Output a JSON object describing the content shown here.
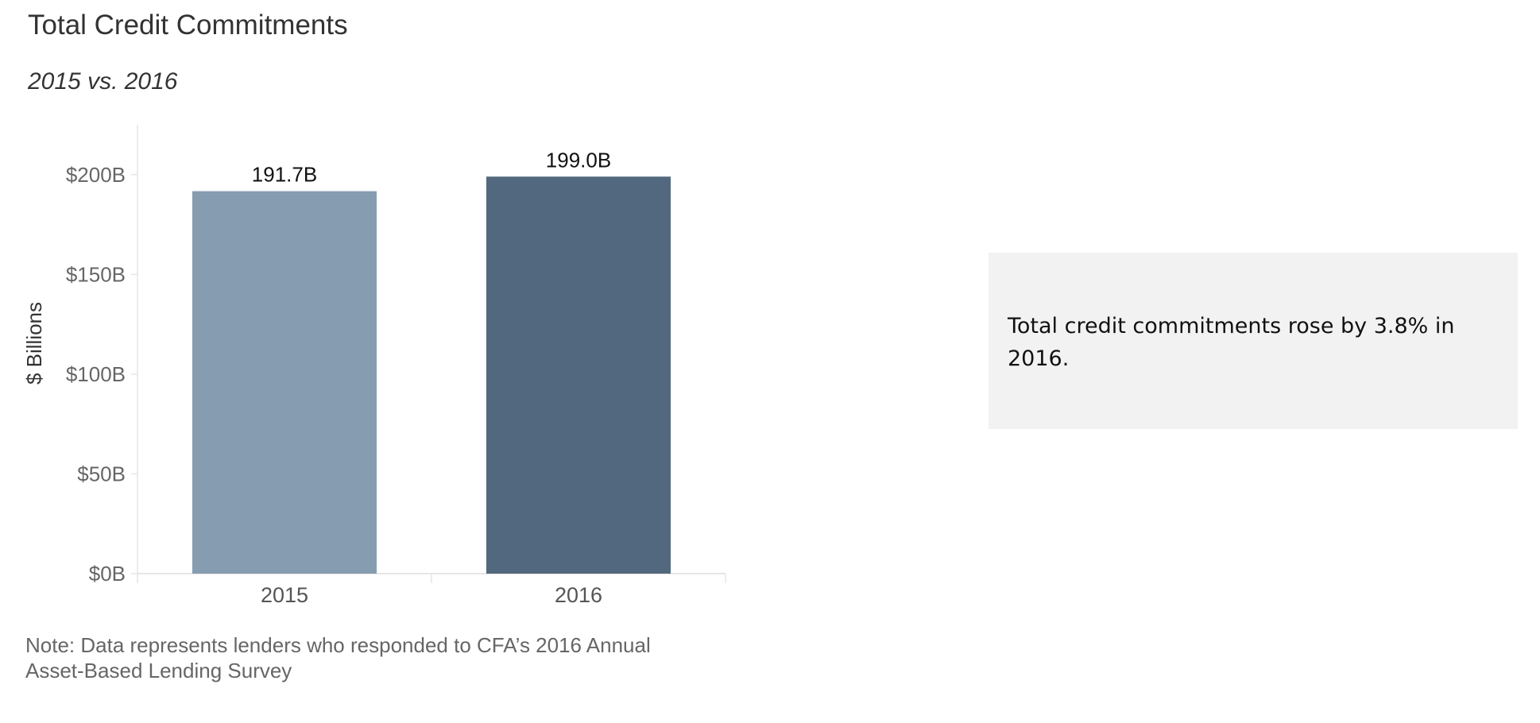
{
  "chart_data": {
    "type": "bar",
    "title": "Total Credit Commitments",
    "subtitle": "2015 vs. 2016",
    "categories": [
      "2015",
      "2016"
    ],
    "values": [
      191.7,
      199.0
    ],
    "data_labels": [
      "191.7B",
      "199.0B"
    ],
    "bar_colors": [
      "#869cb0",
      "#52687e"
    ],
    "ylabel": "$ Billions",
    "ylim": [
      0,
      225
    ],
    "yticks": [
      {
        "value": 0,
        "label": "$0B"
      },
      {
        "value": 50,
        "label": "$50B"
      },
      {
        "value": 100,
        "label": "$100B"
      },
      {
        "value": 150,
        "label": "$150B"
      },
      {
        "value": 200,
        "label": "$200B"
      }
    ],
    "grid": false,
    "legend": "none"
  },
  "note": {
    "line1": "Note: Data represents lenders who responded to CFA’s 2016 Annual",
    "line2": "Asset-Based Lending Survey"
  },
  "callout": {
    "text": "Total credit commitments rose by 3.8% in 2016."
  }
}
